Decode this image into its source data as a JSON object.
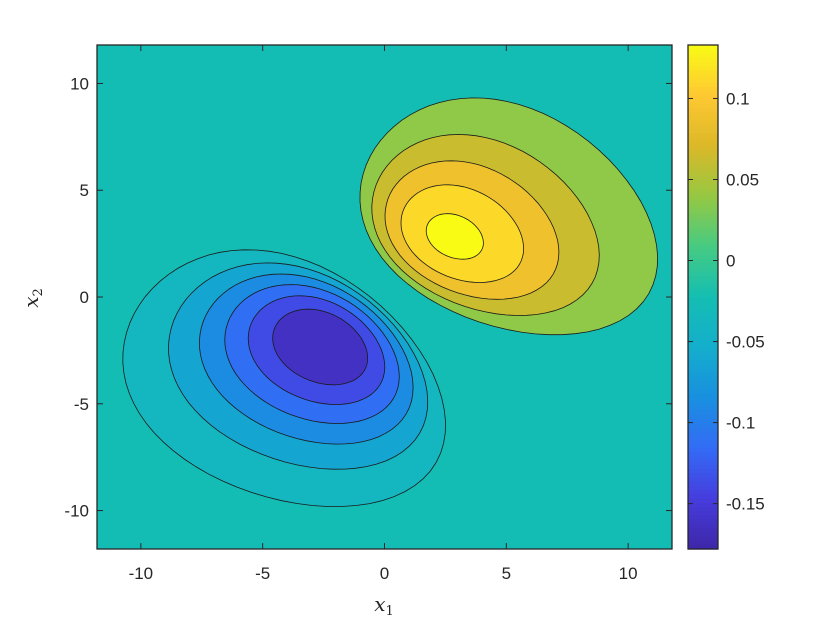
{
  "chart_data": {
    "type": "contour",
    "xlabel": "x",
    "xlabel_sub": "1",
    "ylabel": "x",
    "ylabel_sub": "2",
    "xlim": [
      -11.8,
      11.8
    ],
    "ylim": [
      -11.8,
      11.8
    ],
    "x_ticks": [
      -10,
      -5,
      0,
      5,
      10
    ],
    "x_tick_labels": [
      "-10",
      "-5",
      "0",
      "5",
      "10"
    ],
    "y_ticks": [
      10,
      5,
      0,
      -5,
      -10
    ],
    "y_tick_labels": [
      "10",
      "5",
      "0",
      "-5",
      "-10"
    ],
    "colorbar": {
      "range": [
        -0.178,
        0.133
      ],
      "ticks": [
        0.1,
        0.05,
        0,
        -0.05,
        -0.1,
        -0.15
      ],
      "tick_labels": [
        "0.1",
        "0.05",
        "0",
        "-0.05",
        "-0.1",
        "-0.15"
      ],
      "colormap": "parula"
    },
    "contour_levels": [
      -0.15,
      -0.125,
      -0.1,
      -0.075,
      -0.05,
      -0.025,
      0.025,
      0.05,
      0.075,
      0.1,
      0.125
    ],
    "grid": false,
    "background_level_color": "#13BDB4",
    "extrema": [
      {
        "kind": "max",
        "x": 2.8,
        "y": 2.8,
        "value": 0.133
      },
      {
        "kind": "min",
        "x": -2.5,
        "y": -2.2,
        "value": -0.178
      }
    ]
  }
}
